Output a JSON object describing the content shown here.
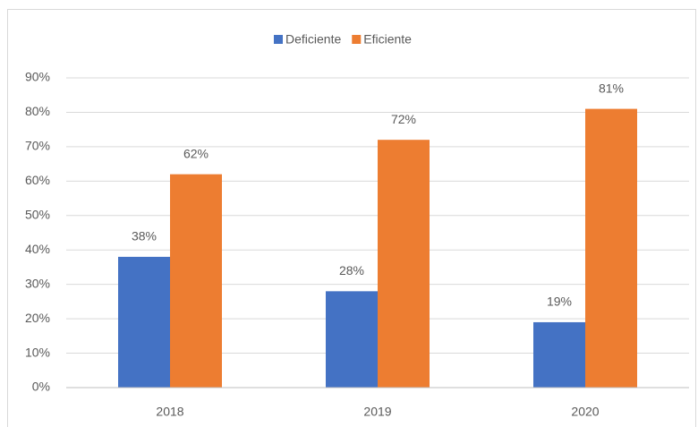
{
  "chart_data": {
    "type": "bar",
    "categories": [
      "2018",
      "2019",
      "2020"
    ],
    "series": [
      {
        "name": "Deficiente",
        "color": "#4472c4",
        "values": [
          38,
          28,
          19
        ],
        "value_labels": [
          "38%",
          "28%",
          "19%"
        ]
      },
      {
        "name": "Eficiente",
        "color": "#ed7d31",
        "values": [
          62,
          72,
          81
        ],
        "value_labels": [
          "62%",
          "72%",
          "81%"
        ]
      }
    ],
    "ylim": [
      0,
      90
    ],
    "yticks": [
      {
        "value": 0,
        "label": "0%"
      },
      {
        "value": 10,
        "label": "10%"
      },
      {
        "value": 20,
        "label": "20%"
      },
      {
        "value": 30,
        "label": "30%"
      },
      {
        "value": 40,
        "label": "40%"
      },
      {
        "value": 50,
        "label": "50%"
      },
      {
        "value": 60,
        "label": "60%"
      },
      {
        "value": 70,
        "label": "70%"
      },
      {
        "value": 80,
        "label": "80%"
      },
      {
        "value": 90,
        "label": "90%"
      }
    ],
    "grid": true,
    "legend": "top"
  }
}
